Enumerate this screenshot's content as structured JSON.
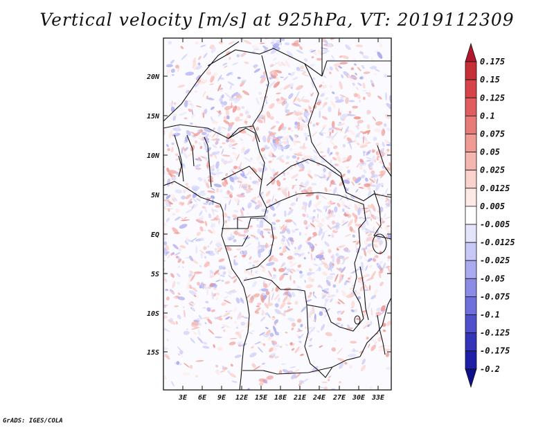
{
  "title": "Vertical velocity [m/s] at 925hPa, VT: 2019112309",
  "credit": "GrADS: IGES/COLA",
  "lat_labels": [
    "20N",
    "15N",
    "10N",
    "5N",
    "EQ",
    "5S",
    "10S",
    "15S"
  ],
  "lon_labels": [
    "3E",
    "6E",
    "9E",
    "12E",
    "15E",
    "18E",
    "21E",
    "24E",
    "27E",
    "30E",
    "33E"
  ],
  "colorbar": {
    "labels": [
      "0.175",
      "0.15",
      "0.125",
      "0.1",
      "0.075",
      "0.05",
      "0.025",
      "0.0125",
      "0.005",
      "-0.005",
      "-0.0125",
      "-0.025",
      "-0.05",
      "-0.075",
      "-0.1",
      "-0.125",
      "-0.175",
      "-0.2"
    ],
    "colors": [
      "#b2182b",
      "#c62f35",
      "#d6444a",
      "#e05c5e",
      "#e87a78",
      "#f09a94",
      "#f6b6b0",
      "#fad2cc",
      "#fde9e6",
      "#ffffff",
      "#e4e4fb",
      "#c8c8f6",
      "#aaaaf0",
      "#8c8ce6",
      "#6e6edc",
      "#5050cc",
      "#3434b8",
      "#1e1ea6",
      "#10108a"
    ]
  }
}
